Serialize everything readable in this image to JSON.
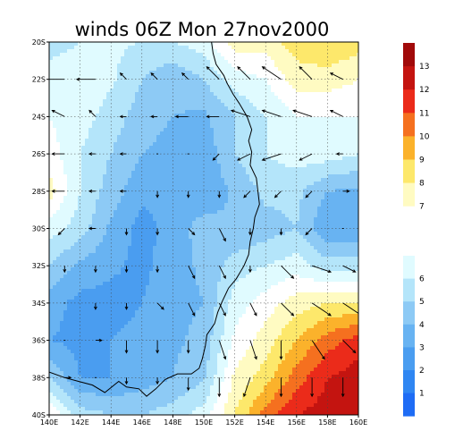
{
  "chart_data": {
    "type": "heatmap",
    "title": "winds 06Z Mon 27nov2000",
    "xlabel": "",
    "ylabel": "",
    "x_ticks": [
      "140E",
      "142E",
      "144E",
      "146E",
      "148E",
      "150E",
      "152E",
      "154E",
      "156E",
      "158E",
      "160E"
    ],
    "y_ticks": [
      "20S",
      "22S",
      "24S",
      "26S",
      "28S",
      "30S",
      "32S",
      "34S",
      "36S",
      "38S",
      "40S"
    ],
    "xlim": [
      140,
      160
    ],
    "ylim": [
      -40,
      -20
    ],
    "grid": true,
    "colorbar": {
      "orientation": "vertical",
      "placement": "right",
      "labels": [
        "1",
        "2",
        "3",
        "4",
        "5",
        "6",
        "7",
        "8",
        "9",
        "10",
        "11",
        "12",
        "13"
      ],
      "levels": [
        1,
        2,
        3,
        4,
        5,
        6,
        7,
        8,
        9,
        10,
        11,
        12,
        13
      ],
      "colors": [
        "#1e6cf5",
        "#2f86f2",
        "#4a9df0",
        "#68b3f2",
        "#8dcaf5",
        "#b4e5fa",
        "#e0fbff",
        "#ffffff",
        "#fffbc2",
        "#fde86b",
        "#fbb22b",
        "#f5701f",
        "#eb2b1a",
        "#c41410",
        "#a10a0a"
      ]
    },
    "speed_grid": {
      "lon": [
        140,
        142,
        144,
        146,
        148,
        150,
        152,
        154,
        156,
        158,
        160
      ],
      "lat": [
        -20,
        -22,
        -24,
        -26,
        -28,
        -30,
        -32,
        -34,
        -36,
        -38,
        -40
      ],
      "values": [
        [
          5.5,
          6.0,
          6.2,
          6.0,
          6.0,
          6.5,
          8.5,
          8.5,
          9.5,
          10.0,
          9.5
        ],
        [
          6.5,
          6.8,
          6.2,
          5.0,
          4.2,
          5.0,
          6.5,
          7.0,
          8.5,
          8.5,
          8.0
        ],
        [
          7.0,
          6.5,
          5.5,
          4.5,
          4.0,
          3.8,
          5.0,
          6.0,
          7.0,
          7.0,
          7.0
        ],
        [
          7.5,
          6.0,
          5.0,
          4.0,
          3.6,
          3.3,
          5.0,
          6.0,
          6.5,
          6.5,
          6.0
        ],
        [
          8.5,
          6.0,
          4.5,
          3.3,
          3.2,
          3.2,
          4.2,
          5.3,
          5.3,
          4.0,
          3.8
        ],
        [
          6.5,
          5.5,
          3.8,
          2.6,
          3.4,
          4.5,
          4.0,
          4.5,
          5.0,
          3.0,
          3.0
        ],
        [
          5.0,
          3.8,
          3.2,
          2.7,
          3.6,
          4.2,
          5.5,
          6.0,
          6.5,
          5.5,
          5.5
        ],
        [
          3.5,
          2.6,
          2.6,
          3.0,
          3.7,
          4.0,
          6.5,
          7.5,
          8.5,
          9.0,
          9.0
        ],
        [
          3.0,
          2.7,
          3.0,
          3.3,
          3.8,
          4.3,
          7.2,
          8.5,
          10.0,
          11.5,
          12.5
        ],
        [
          5.0,
          3.0,
          3.0,
          3.5,
          4.0,
          4.8,
          8.2,
          9.5,
          11.5,
          13.0,
          13.5
        ],
        [
          8.0,
          5.5,
          5.0,
          5.0,
          5.5,
          6.5,
          9.0,
          11.5,
          13.0,
          13.5,
          13.5
        ]
      ]
    },
    "wind_vectors": {
      "lon": [
        141,
        143,
        145,
        147,
        149,
        151,
        153,
        155,
        157,
        159
      ],
      "lat": [
        -22,
        -24,
        -26,
        -28,
        -30,
        -32,
        -34,
        -36,
        -38
      ],
      "u": [
        [
          -3,
          -3,
          -1,
          -1,
          -1,
          -2,
          -2,
          -3,
          -2,
          -2
        ],
        [
          -2,
          -1,
          -1,
          -1,
          -2,
          -2,
          -3,
          -3,
          -3,
          -2
        ],
        [
          -2,
          -1,
          -1,
          0,
          0,
          -1,
          -2,
          -3,
          -2,
          -1
        ],
        [
          -2,
          -1,
          -1,
          0,
          0,
          0,
          -1,
          -1,
          -1,
          1
        ],
        [
          -1,
          -1,
          0,
          0,
          1,
          1,
          0,
          0,
          -1,
          0
        ],
        [
          0,
          0,
          0,
          0,
          1,
          1,
          0,
          2,
          3,
          2
        ],
        [
          0,
          0,
          0,
          1,
          1,
          1,
          1,
          2,
          3,
          3
        ],
        [
          0,
          1,
          0,
          0,
          0,
          1,
          1,
          0,
          2,
          2
        ],
        [
          1,
          0,
          0,
          0,
          0,
          0,
          -1,
          0,
          0,
          0
        ]
      ],
      "v": [
        [
          0,
          0,
          1,
          1,
          1,
          2,
          2,
          2,
          2,
          1
        ],
        [
          1,
          1,
          0,
          0,
          0,
          0,
          1,
          1,
          1,
          1
        ],
        [
          0,
          0,
          0,
          0,
          0,
          -1,
          -1,
          -1,
          -1,
          0
        ],
        [
          0,
          0,
          0,
          -1,
          -1,
          -1,
          -1,
          -1,
          -1,
          0
        ],
        [
          -1,
          0,
          -1,
          -1,
          -1,
          -2,
          -1,
          -1,
          -1,
          0
        ],
        [
          -1,
          -1,
          -1,
          -1,
          -2,
          -2,
          -1,
          -2,
          -1,
          -1
        ],
        [
          0,
          -1,
          -1,
          -1,
          -2,
          -2,
          -2,
          -2,
          -2,
          -2
        ],
        [
          0,
          0,
          -2,
          -2,
          -2,
          -3,
          -3,
          -3,
          -3,
          -2
        ],
        [
          0,
          0,
          -1,
          -1,
          -2,
          -3,
          -3,
          -3,
          -3,
          -3
        ]
      ]
    }
  }
}
